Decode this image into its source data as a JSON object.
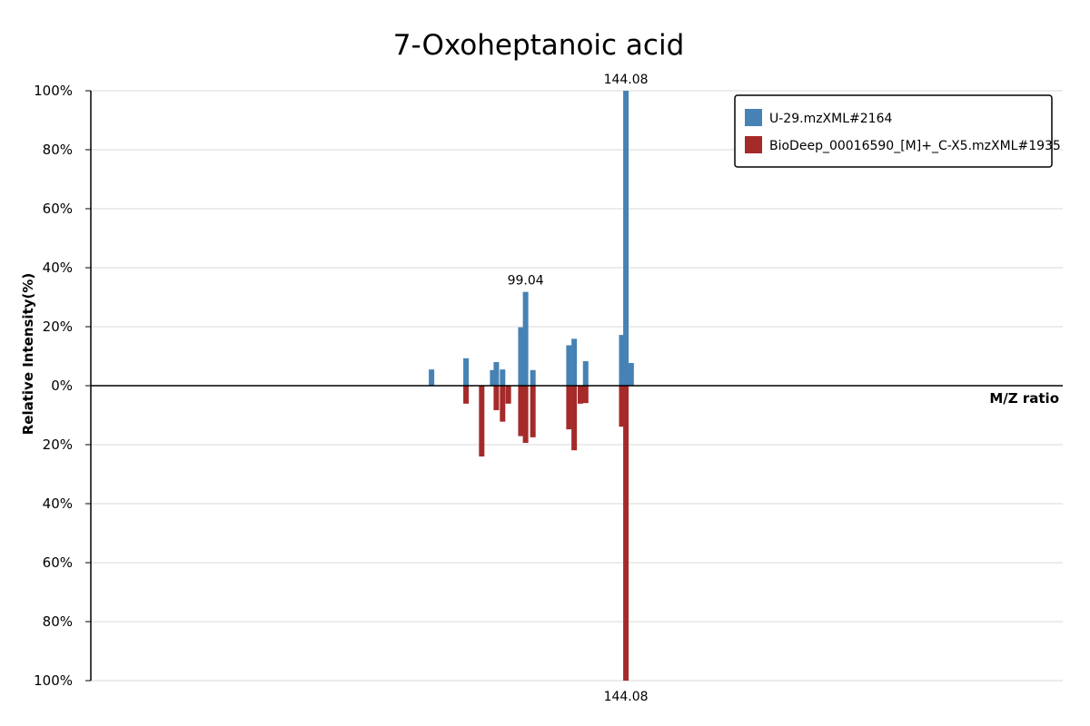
{
  "chart_data": {
    "type": "bar",
    "title": "7-Oxoheptanoic acid",
    "xlabel": "M/Z ratio",
    "ylabel": "Relative Intensity(%)",
    "xlim": [
      0,
      186
    ],
    "ylim": [
      -100,
      100
    ],
    "yticks": [
      {
        "value": 100,
        "label": "100%"
      },
      {
        "value": 80,
        "label": "80%"
      },
      {
        "value": 60,
        "label": "60%"
      },
      {
        "value": 40,
        "label": "40%"
      },
      {
        "value": 20,
        "label": "20%"
      },
      {
        "value": 0,
        "label": "0%"
      },
      {
        "value": -20,
        "label": "20%"
      },
      {
        "value": -40,
        "label": "40%"
      },
      {
        "value": -60,
        "label": "60%"
      },
      {
        "value": -80,
        "label": "80%"
      },
      {
        "value": -100,
        "label": "100%"
      }
    ],
    "grid": true,
    "legend_position": "top-right",
    "series": [
      {
        "name": "U-29.mzXML#2164",
        "color": "#4682b4",
        "direction": "up",
        "peaks": [
          {
            "mz": 65.2,
            "intensity": 5.5
          },
          {
            "mz": 71.8,
            "intensity": 9.3
          },
          {
            "mz": 76.9,
            "intensity": 5.3
          },
          {
            "mz": 77.6,
            "intensity": 8.0
          },
          {
            "mz": 78.8,
            "intensity": 5.5
          },
          {
            "mz": 82.3,
            "intensity": 19.8
          },
          {
            "mz": 83.2,
            "intensity": 31.8
          },
          {
            "mz": 84.6,
            "intensity": 5.3
          },
          {
            "mz": 91.5,
            "intensity": 13.7
          },
          {
            "mz": 92.5,
            "intensity": 15.9
          },
          {
            "mz": 94.7,
            "intensity": 8.3
          },
          {
            "mz": 101.6,
            "intensity": 17.2
          },
          {
            "mz": 102.4,
            "intensity": 100
          },
          {
            "mz": 103.4,
            "intensity": 7.7
          }
        ],
        "labels": [
          {
            "mz": 83.2,
            "intensity": 31.8,
            "text": "99.04"
          },
          {
            "mz": 102.4,
            "intensity": 100,
            "text": "144.08"
          }
        ]
      },
      {
        "name": "BioDeep_00016590_[M]+_C-X5.mzXML#1935",
        "color": "#a52a2a",
        "direction": "down",
        "peaks": [
          {
            "mz": 71.8,
            "intensity": 6.1
          },
          {
            "mz": 74.8,
            "intensity": 24.0
          },
          {
            "mz": 77.6,
            "intensity": 8.3
          },
          {
            "mz": 78.8,
            "intensity": 12.2
          },
          {
            "mz": 79.9,
            "intensity": 6.1
          },
          {
            "mz": 82.3,
            "intensity": 17.1
          },
          {
            "mz": 83.2,
            "intensity": 19.4
          },
          {
            "mz": 84.6,
            "intensity": 17.5
          },
          {
            "mz": 91.5,
            "intensity": 14.8
          },
          {
            "mz": 92.5,
            "intensity": 21.9
          },
          {
            "mz": 93.7,
            "intensity": 6.1
          },
          {
            "mz": 94.7,
            "intensity": 5.9
          },
          {
            "mz": 101.6,
            "intensity": 13.9
          },
          {
            "mz": 102.4,
            "intensity": 100
          }
        ],
        "labels": [
          {
            "mz": 102.4,
            "intensity": 100,
            "text": "144.08"
          }
        ]
      }
    ]
  }
}
